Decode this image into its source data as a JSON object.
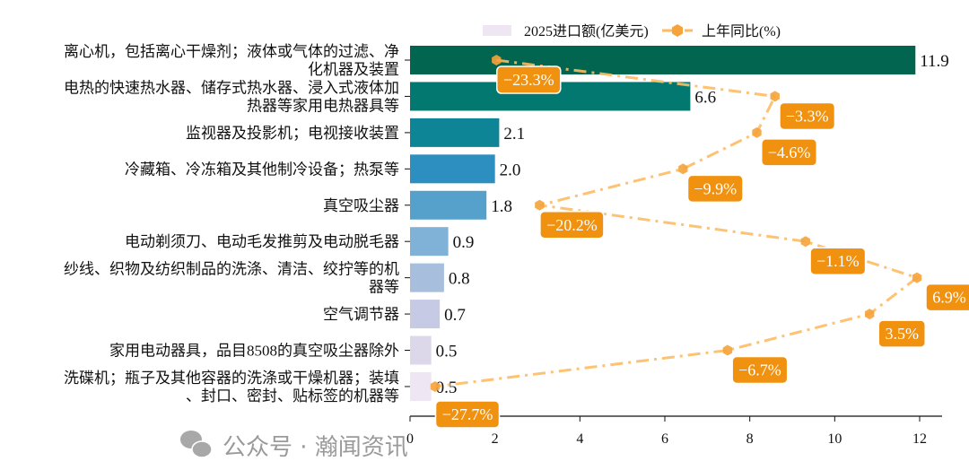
{
  "chart_data": {
    "type": "bar",
    "orientation": "horizontal",
    "categories": [
      [
        "离心机，包括离心干燥剂；液体或气体的过滤、净",
        "化机器及装置"
      ],
      [
        "电热的快速热水器、储存式热水器、浸入式液体加",
        "热器等家用电热器具等"
      ],
      [
        "监视器及投影机；电视接收装置"
      ],
      [
        "冷藏箱、冷冻箱及其他制冷设备；热泵等"
      ],
      [
        "真空吸尘器"
      ],
      [
        "电动剃须刀、电动毛发推剪及电动脱毛器"
      ],
      [
        "纱线、织物及纺织制品的洗涤、清洁、绞拧等的机",
        "器等"
      ],
      [
        "空气调节器"
      ],
      [
        "家用电动器具，品目8508的真空吸尘器除外"
      ],
      [
        "洗碟机；瓶子及其他容器的洗涤或干燥机器；装填",
        "、封口、密封、贴标签的机器等"
      ]
    ],
    "series": [
      {
        "name": "2025进口额(亿美元)",
        "type": "bar",
        "values": [
          11.9,
          6.6,
          2.1,
          2.0,
          1.8,
          0.9,
          0.8,
          0.7,
          0.5,
          0.5
        ],
        "value_labels": [
          "11.9",
          "6.6",
          "2.1",
          "2.0",
          "1.8",
          "0.9",
          "0.8",
          "0.7",
          "0.5",
          "0.5"
        ],
        "colors": [
          "#01654f",
          "#027870",
          "#0e8597",
          "#2d8fbf",
          "#56a1cc",
          "#7fb2d6",
          "#a7bedd",
          "#c6cae4",
          "#dcd8ea",
          "#eee6f2"
        ]
      },
      {
        "name": "上年同比(%)",
        "type": "line",
        "values": [
          -23.3,
          -3.3,
          -4.6,
          -9.9,
          -20.2,
          -1.1,
          6.9,
          3.5,
          -6.7,
          -27.7
        ],
        "value_labels": [
          "−23.3%",
          "−3.3%",
          "−4.6%",
          "−9.9%",
          "−20.2%",
          "−1.1%",
          "6.9%",
          "3.5%",
          "−6.7%",
          "−27.7%"
        ],
        "color": "#fdbb63",
        "marker_color": "#f5a33a",
        "label_box_color": "#f0920f",
        "line_style": "dash-dot",
        "marker": "hexagon"
      }
    ],
    "xlim": [
      0,
      12
    ],
    "xticks": [
      "0",
      "2",
      "4",
      "6",
      "8",
      "10",
      "12"
    ],
    "xlabel": "",
    "ylabel": "",
    "grid": false,
    "legend": "top"
  },
  "watermark": "公众号 · 瀚闻资讯"
}
